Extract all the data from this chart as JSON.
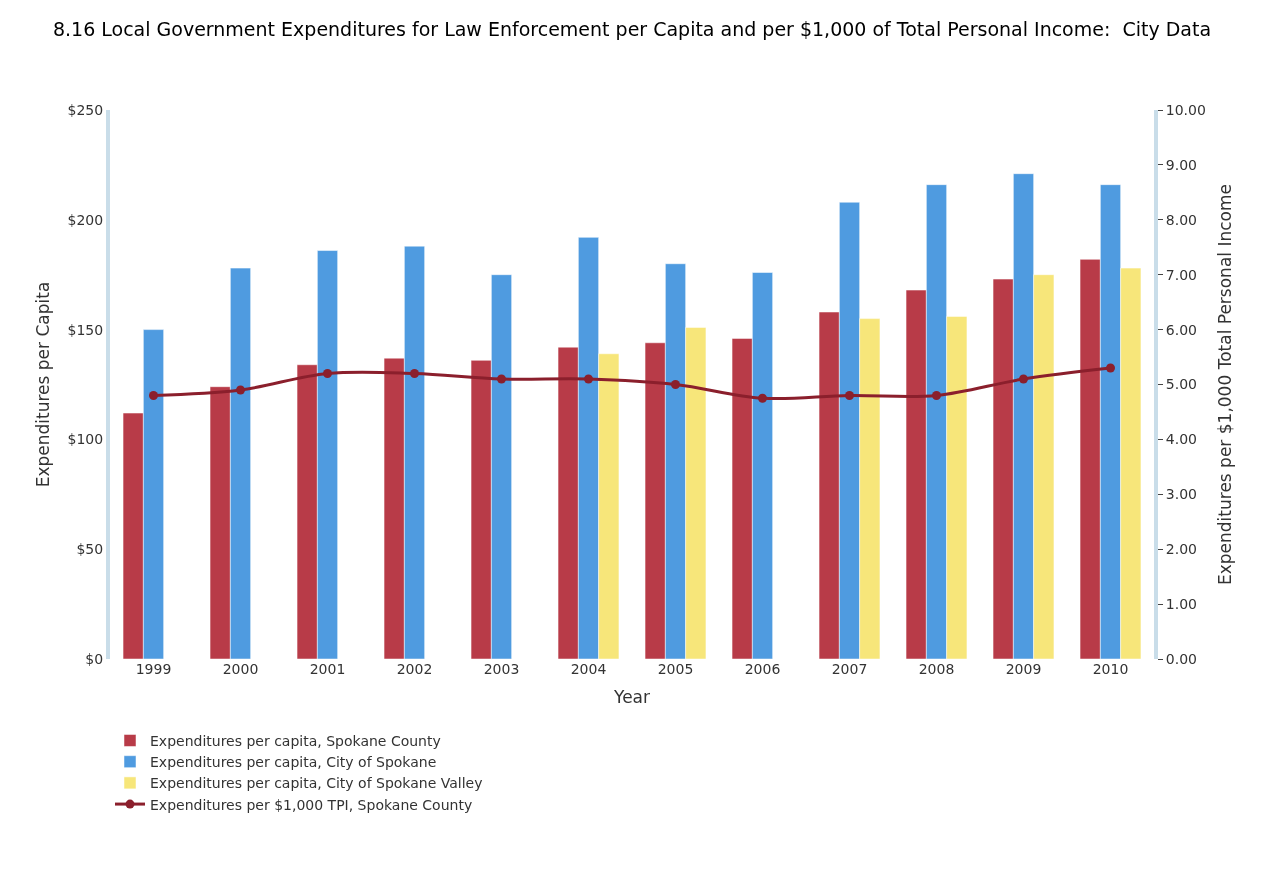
{
  "chart_data": {
    "type": "bar",
    "title": "8.16 Local Government Expenditures for Law Enforcement per Capita and per $1,000 of Total Personal Income:  City Data",
    "xlabel": "Year",
    "ylabel": "Expenditures per Capita",
    "y2label": "Expenditures per $1,000 Total Personal Income",
    "categories": [
      "1999",
      "2000",
      "2001",
      "2002",
      "2003",
      "2004",
      "2005",
      "2006",
      "2007",
      "2008",
      "2009",
      "2010"
    ],
    "series": [
      {
        "name": "Expenditures per capita, Spokane County",
        "color": "#b83b48",
        "values": [
          112,
          124,
          134,
          137,
          136,
          142,
          144,
          146,
          158,
          168,
          173,
          182
        ]
      },
      {
        "name": "Expenditures per capita, City of Spokane",
        "color": "#4f9be0",
        "values": [
          150,
          178,
          186,
          188,
          175,
          192,
          180,
          176,
          208,
          216,
          221,
          216
        ]
      },
      {
        "name": "Expenditures per capita, City of Spokane Valley",
        "color": "#f7e67a",
        "values": [
          null,
          null,
          null,
          null,
          null,
          139,
          151,
          null,
          155,
          156,
          175,
          178
        ]
      },
      {
        "name": "Expenditures per $1,000 TPI, Spokane County",
        "color": "#8b1f2c",
        "type": "line",
        "axis": "y2",
        "marker": "circle",
        "values": [
          4.8,
          4.9,
          5.2,
          5.2,
          5.1,
          5.1,
          5.0,
          4.75,
          4.8,
          4.8,
          5.1,
          5.3
        ]
      }
    ],
    "ylim": [
      0,
      250
    ],
    "yticks": [
      {
        "value": 0,
        "label": "$0"
      },
      {
        "value": 50,
        "label": "$50"
      },
      {
        "value": 100,
        "label": "$100"
      },
      {
        "value": 150,
        "label": "$150"
      },
      {
        "value": 200,
        "label": "$200"
      },
      {
        "value": 250,
        "label": "$250"
      }
    ],
    "y2lim": [
      0,
      10
    ],
    "y2ticks": [
      {
        "value": 0,
        "label": "0.00"
      },
      {
        "value": 1,
        "label": "1.00"
      },
      {
        "value": 2,
        "label": "2.00"
      },
      {
        "value": 3,
        "label": "3.00"
      },
      {
        "value": 4,
        "label": "4.00"
      },
      {
        "value": 5,
        "label": "5.00"
      },
      {
        "value": 6,
        "label": "6.00"
      },
      {
        "value": 7,
        "label": "7.00"
      },
      {
        "value": 8,
        "label": "8.00"
      },
      {
        "value": 9,
        "label": "9.00"
      },
      {
        "value": 10,
        "label": "10.00"
      }
    ],
    "grid": false,
    "legend": "bottom left"
  }
}
